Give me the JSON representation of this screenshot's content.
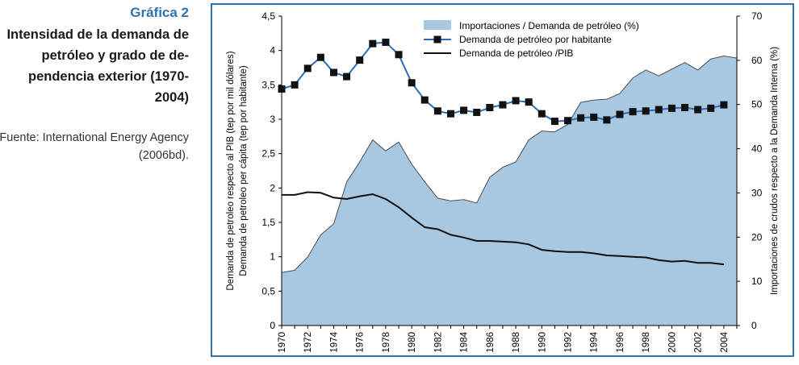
{
  "caption": {
    "number": "Gráfica 2",
    "title": "Intensidad de la demanda de petróleo y grado de de-pendencia exterior (1970-2004)",
    "source": "Fuente: International Energy Agency (2006bd)."
  },
  "colors": {
    "accent": "#2f73b4",
    "area_fill": "#a8c8e2",
    "area_stroke": "#3d3d3d",
    "per_capita_line": "#2a6db5",
    "marker": "#111111",
    "pib_line": "#111111"
  },
  "chart_data": {
    "type": "area",
    "x": [
      1970,
      1971,
      1972,
      1973,
      1974,
      1975,
      1976,
      1977,
      1978,
      1979,
      1980,
      1981,
      1982,
      1983,
      1984,
      1985,
      1986,
      1987,
      1988,
      1989,
      1990,
      1991,
      1992,
      1993,
      1994,
      1995,
      1996,
      1997,
      1998,
      1999,
      2000,
      2001,
      2002,
      2003,
      2004,
      2005
    ],
    "x_ticks": [
      "1970",
      "1972",
      "1974",
      "1976",
      "1978",
      "1980",
      "1982",
      "1984",
      "1986",
      "1988",
      "1990",
      "1992",
      "1994",
      "1996",
      "1998",
      "2000",
      "2002",
      "2004"
    ],
    "y_left": {
      "label": "Demanda de petroleo respecto al PIB (tep por mil dólares)",
      "label2": "Demanda de petroleo per cápita (tep por habitante)",
      "ylim": [
        0,
        4.5
      ],
      "ticks": [
        "0",
        "0,5",
        "1",
        "1,5",
        "2",
        "2,5",
        "3",
        "3,5",
        "4",
        "4,5"
      ]
    },
    "y_right": {
      "label": "Importaciones de crudos respecto a la Demanda Interna (%)",
      "ylim": [
        0,
        70
      ],
      "ticks": [
        "0",
        "10",
        "20",
        "30",
        "40",
        "50",
        "60",
        "70"
      ]
    },
    "legend": [
      "Importaciones /  Demanda de petróleo (%)",
      "Demanda de petróleo por habitante",
      "Demanda de petróleo /PIB"
    ],
    "legend_position": "top",
    "series": [
      {
        "name": "Importaciones /  Demanda de petróleo (%)",
        "axis": "right",
        "style": "area",
        "values": [
          12,
          12.5,
          15.5,
          20.5,
          23,
          32.5,
          37,
          42,
          39.5,
          41.5,
          36.5,
          32.5,
          28.8,
          28.2,
          28.5,
          27.7,
          33.5,
          35.8,
          37,
          42,
          44,
          43.8,
          45.5,
          50.5,
          51,
          51.2,
          52.5,
          56,
          57.8,
          56.5,
          58,
          59.5,
          57.8,
          60.3,
          61,
          60.5
        ]
      },
      {
        "name": "Demanda de petróleo por habitante",
        "axis": "left",
        "style": "line-markers",
        "values": [
          3.44,
          3.5,
          3.74,
          3.9,
          3.68,
          3.62,
          3.86,
          4.1,
          4.12,
          3.94,
          3.53,
          3.28,
          3.12,
          3.08,
          3.13,
          3.1,
          3.17,
          3.21,
          3.27,
          3.25,
          3.08,
          2.97,
          2.98,
          3.02,
          3.03,
          2.99,
          3.07,
          3.11,
          3.12,
          3.14,
          3.16,
          3.17,
          3.14,
          3.16,
          3.21,
          null
        ]
      },
      {
        "name": "Demanda de petróleo /PIB",
        "axis": "left",
        "style": "line",
        "values": [
          1.9,
          1.9,
          1.94,
          1.93,
          1.86,
          1.84,
          1.88,
          1.91,
          1.84,
          1.72,
          1.57,
          1.43,
          1.4,
          1.32,
          1.28,
          1.23,
          1.23,
          1.22,
          1.21,
          1.18,
          1.1,
          1.08,
          1.07,
          1.07,
          1.05,
          1.02,
          1.01,
          1.0,
          0.99,
          0.95,
          0.93,
          0.94,
          0.91,
          0.91,
          0.89,
          null
        ]
      }
    ]
  }
}
